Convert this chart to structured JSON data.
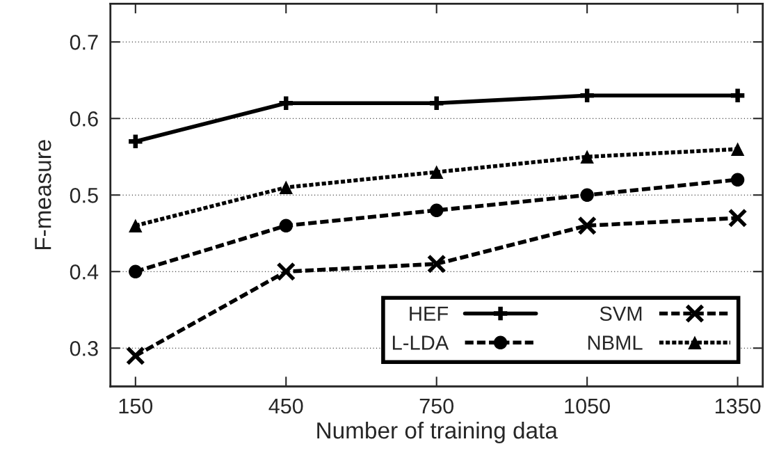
{
  "chart_data": {
    "type": "line",
    "xlabel": "Number of training data",
    "ylabel": "F-measure",
    "x": [
      150,
      450,
      750,
      1050,
      1350
    ],
    "series": [
      {
        "name": "HEF",
        "color": "#000000",
        "values": [
          0.57,
          0.62,
          0.62,
          0.63,
          0.63
        ],
        "marker": "cross",
        "line_style": "solid"
      },
      {
        "name": "L-LDA",
        "color": "#000000",
        "values": [
          0.4,
          0.46,
          0.48,
          0.5,
          0.52
        ],
        "marker": "circle",
        "line_style": "dashed"
      },
      {
        "name": "SVM",
        "color": "#000000",
        "values": [
          0.29,
          0.4,
          0.41,
          0.46,
          0.47
        ],
        "marker": "cross",
        "line_style": "dashed"
      },
      {
        "name": "NBML",
        "color": "#000000",
        "values": [
          0.46,
          0.51,
          0.53,
          0.55,
          0.56
        ],
        "marker": "triangle",
        "line_style": "dotted"
      }
    ],
    "xlim": [
      100,
      1400
    ],
    "xticks": [
      150,
      450,
      750,
      1050,
      1350
    ],
    "ylim": [
      0.25,
      0.75
    ],
    "yticks": [
      0.3,
      0.4,
      0.5,
      0.6,
      0.7
    ],
    "grid": "y",
    "legend": "bottom right"
  }
}
